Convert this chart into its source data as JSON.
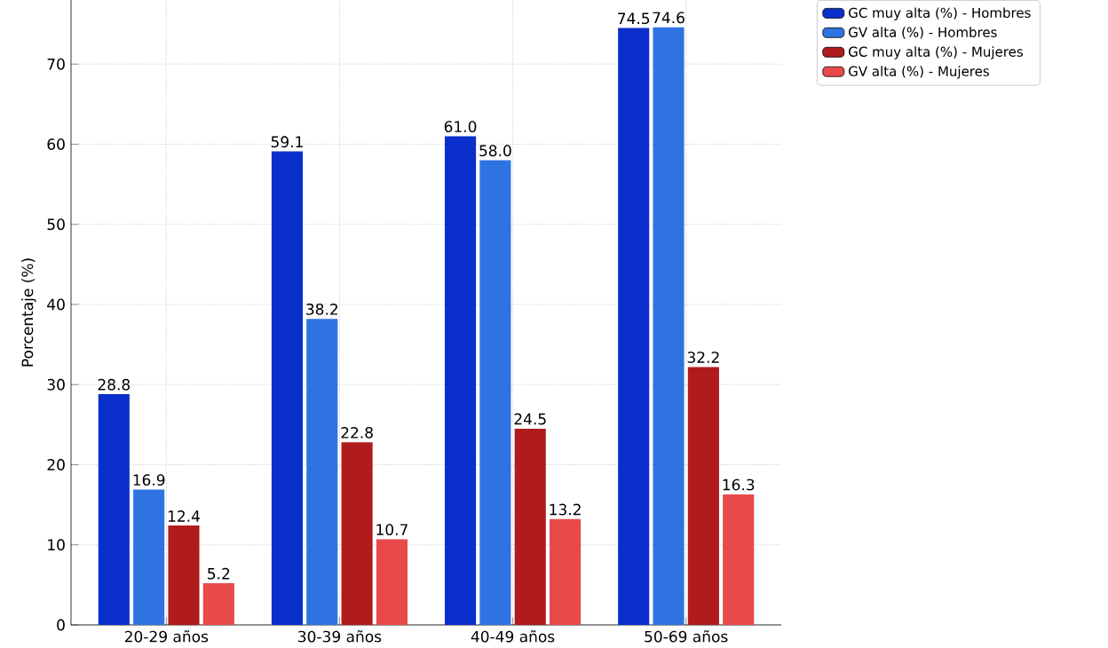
{
  "chart_data": {
    "type": "bar",
    "ylabel": "Porcentaje (%)",
    "categories": [
      "20-29 años",
      "30-39 años",
      "40-49 años",
      "50-69 años"
    ],
    "series": [
      {
        "name": "GC muy alta (%) - Hombres",
        "color": "#0a2fcc",
        "values": [
          28.8,
          59.1,
          61.0,
          74.5
        ],
        "value_labels": [
          "28.8",
          "59.1",
          "61.0",
          "74.5"
        ]
      },
      {
        "name": "GV alta (%) - Hombres",
        "color": "#2f73e3",
        "values": [
          16.9,
          38.2,
          58.0,
          74.6
        ],
        "value_labels": [
          "16.9",
          "38.2",
          "58.0",
          "74.6"
        ]
      },
      {
        "name": "GC muy alta (%) - Mujeres",
        "color": "#b01b1b",
        "values": [
          12.4,
          22.8,
          24.5,
          32.2
        ],
        "value_labels": [
          "12.4",
          "22.8",
          "24.5",
          "32.2"
        ]
      },
      {
        "name": "GV alta (%) - Mujeres",
        "color": "#e84a4a",
        "values": [
          5.2,
          10.7,
          13.2,
          16.3
        ],
        "value_labels": [
          "5.2",
          "10.7",
          "13.2",
          "16.3"
        ]
      }
    ],
    "ylim": [
      0,
      78
    ],
    "yticks": [
      0,
      10,
      20,
      30,
      40,
      50,
      60,
      70
    ],
    "grid": true,
    "legend": "top right"
  }
}
